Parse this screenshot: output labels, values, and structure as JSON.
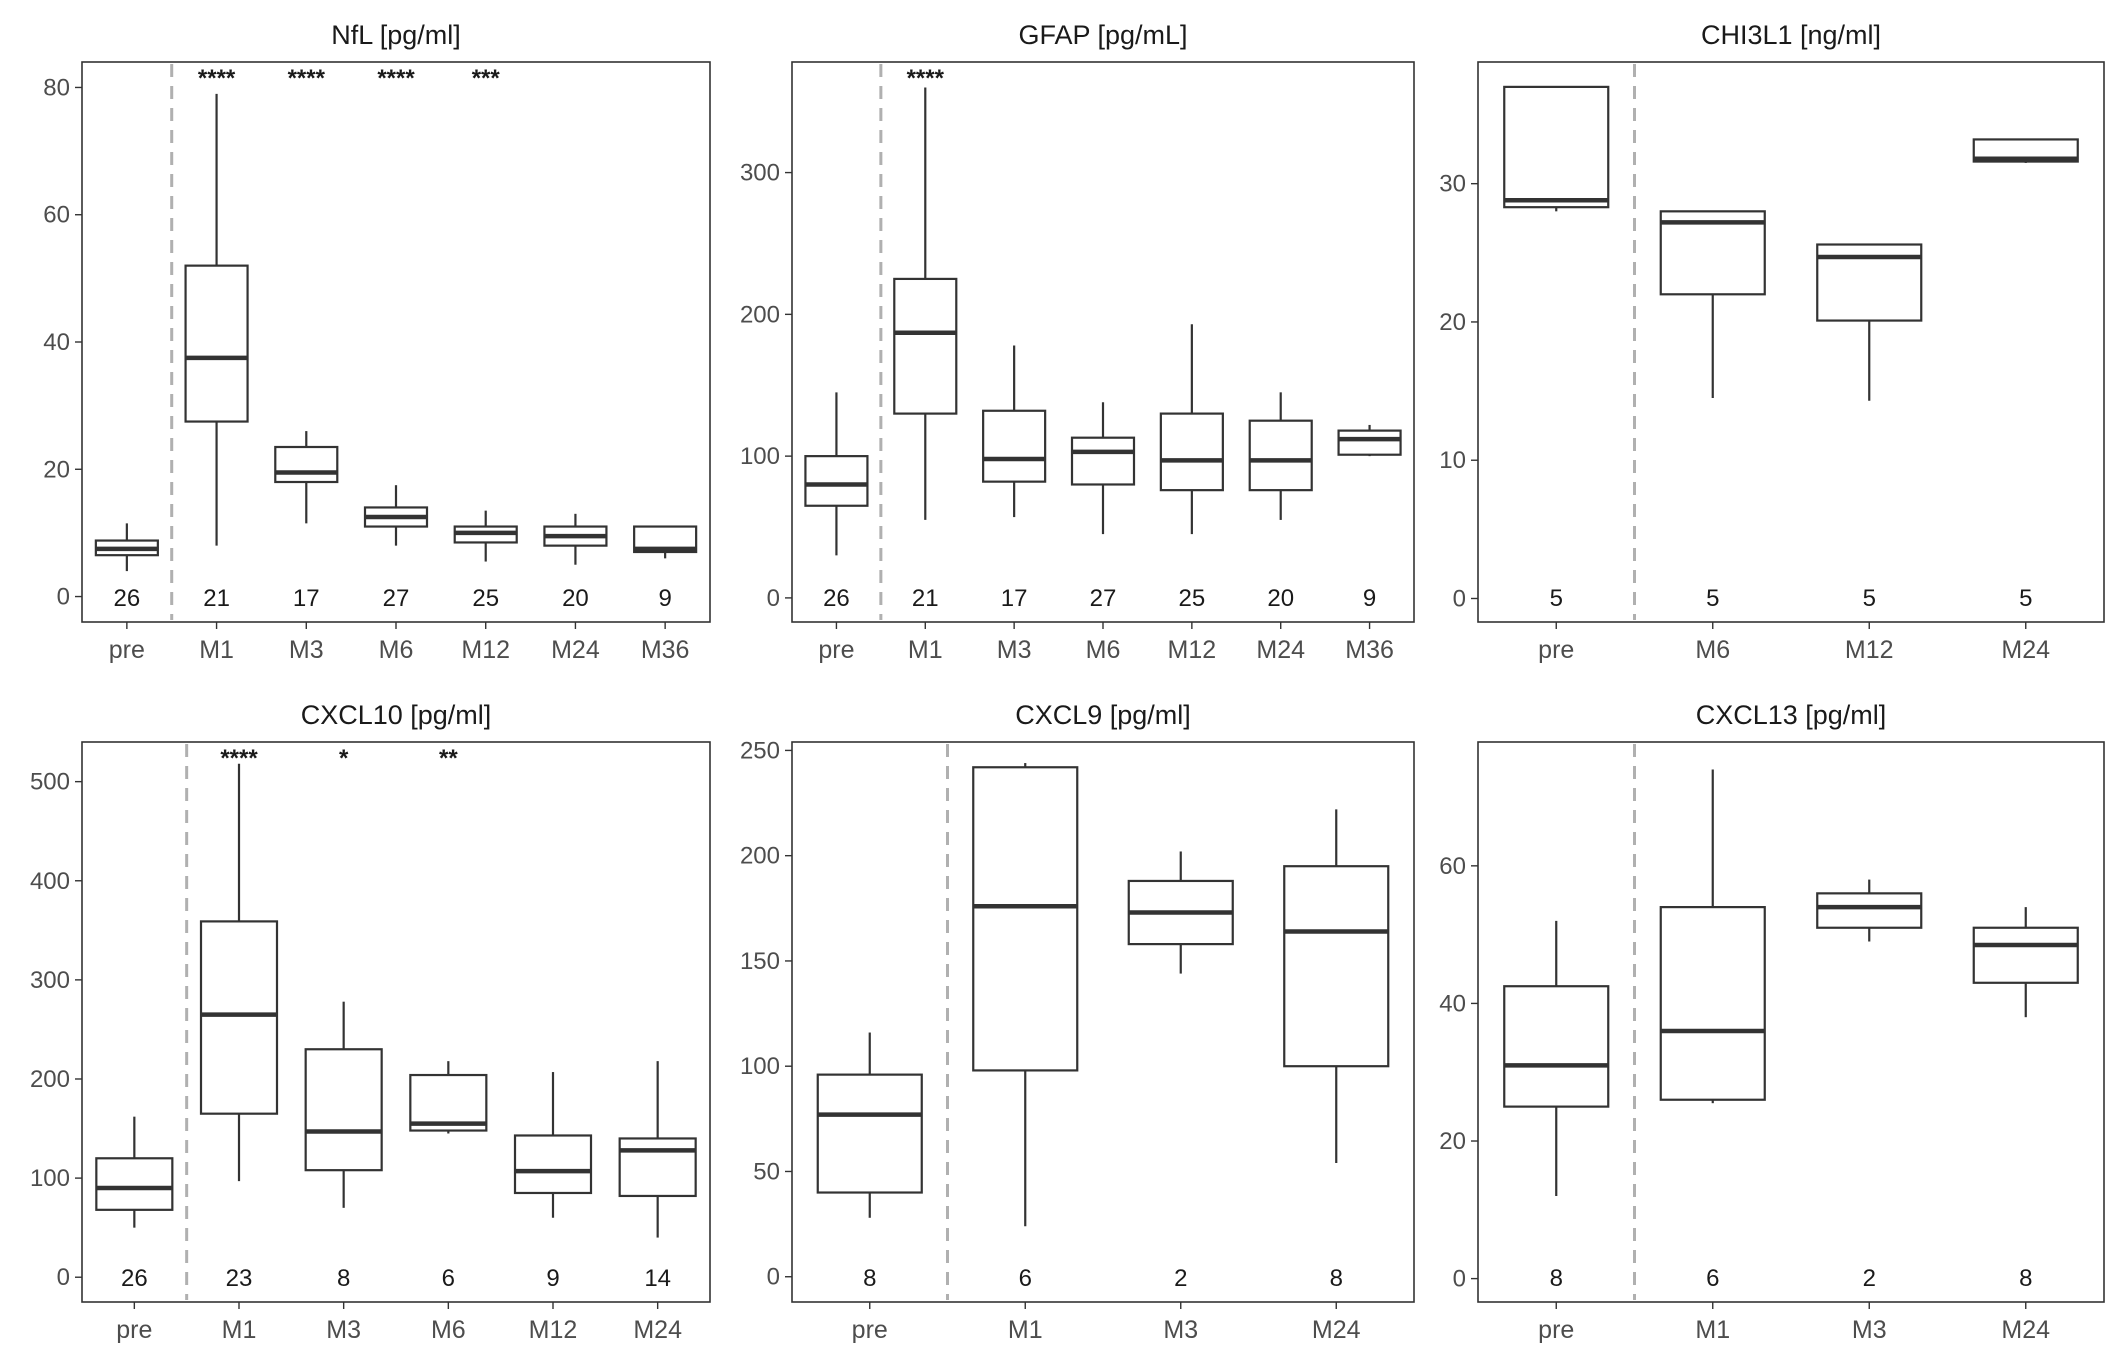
{
  "chart_data": [
    {
      "type": "box",
      "title": "NfL [pg/ml]",
      "categories": [
        "pre",
        "M1",
        "M3",
        "M6",
        "M12",
        "M24",
        "M36"
      ],
      "ylim": [
        -4,
        84
      ],
      "yticks": [
        0,
        20,
        40,
        60,
        80
      ],
      "divider_after_index": 0,
      "boxes": [
        {
          "min": 4,
          "q1": 6.5,
          "median": 7.5,
          "q3": 8.8,
          "max": 11.5
        },
        {
          "min": 8,
          "q1": 27.5,
          "median": 37.5,
          "q3": 52,
          "max": 79
        },
        {
          "min": 11.5,
          "q1": 18,
          "median": 19.5,
          "q3": 23.5,
          "max": 26
        },
        {
          "min": 8,
          "q1": 11,
          "median": 12.5,
          "q3": 14,
          "max": 17.5
        },
        {
          "min": 5.5,
          "q1": 8.5,
          "median": 10,
          "q3": 11,
          "max": 13.5
        },
        {
          "min": 5,
          "q1": 8,
          "median": 9.5,
          "q3": 11,
          "max": 13
        },
        {
          "min": 6,
          "q1": 7,
          "median": 7.5,
          "q3": 11,
          "max": 11
        }
      ],
      "n": [
        "26",
        "21",
        "17",
        "27",
        "25",
        "20",
        "9"
      ],
      "significance": [
        "",
        "****",
        "****",
        "****",
        "***",
        "",
        ""
      ]
    },
    {
      "type": "box",
      "title": "GFAP [pg/mL]",
      "categories": [
        "pre",
        "M1",
        "M3",
        "M6",
        "M12",
        "M24",
        "M36"
      ],
      "ylim": [
        -17,
        378
      ],
      "yticks": [
        0,
        100,
        200,
        300
      ],
      "divider_after_index": 0,
      "boxes": [
        {
          "min": 30,
          "q1": 65,
          "median": 80,
          "q3": 100,
          "max": 145
        },
        {
          "min": 55,
          "q1": 130,
          "median": 187,
          "q3": 225,
          "max": 360
        },
        {
          "min": 57,
          "q1": 82,
          "median": 98,
          "q3": 132,
          "max": 178
        },
        {
          "min": 45,
          "q1": 80,
          "median": 103,
          "q3": 113,
          "max": 138
        },
        {
          "min": 45,
          "q1": 76,
          "median": 97,
          "q3": 130,
          "max": 193
        },
        {
          "min": 55,
          "q1": 76,
          "median": 97,
          "q3": 125,
          "max": 145
        },
        {
          "min": 100,
          "q1": 101,
          "median": 112,
          "q3": 118,
          "max": 122
        }
      ],
      "n": [
        "26",
        "21",
        "17",
        "27",
        "25",
        "20",
        "9"
      ],
      "significance": [
        "",
        "****",
        "",
        "",
        "",
        "",
        ""
      ]
    },
    {
      "type": "box",
      "title": "CHI3L1 [ng/ml]",
      "categories": [
        "pre",
        "M6",
        "M12",
        "M24"
      ],
      "ylim": [
        -1.7,
        38.8
      ],
      "yticks": [
        0,
        10,
        20,
        30
      ],
      "divider_after_index": 0,
      "boxes": [
        {
          "min": 28,
          "q1": 28.3,
          "median": 28.8,
          "q3": 37,
          "max": 37
        },
        {
          "min": 14.5,
          "q1": 22,
          "median": 27.2,
          "q3": 28,
          "max": 28
        },
        {
          "min": 14.3,
          "q1": 20.1,
          "median": 24.7,
          "q3": 25.6,
          "max": 25.6
        },
        {
          "min": 31.5,
          "q1": 31.6,
          "median": 31.8,
          "q3": 33.2,
          "max": 33.2
        }
      ],
      "n": [
        "5",
        "5",
        "5",
        "5"
      ],
      "significance": [
        "",
        "",
        "",
        ""
      ]
    },
    {
      "type": "box",
      "title": "CXCL10 [pg/ml]",
      "categories": [
        "pre",
        "M1",
        "M3",
        "M6",
        "M12",
        "M24"
      ],
      "ylim": [
        -25,
        540
      ],
      "yticks": [
        0,
        100,
        200,
        300,
        400,
        500
      ],
      "divider_after_index": 0,
      "boxes": [
        {
          "min": 50,
          "q1": 68,
          "median": 90,
          "q3": 120,
          "max": 162
        },
        {
          "min": 97,
          "q1": 165,
          "median": 265,
          "q3": 359,
          "max": 518
        },
        {
          "min": 70,
          "q1": 108,
          "median": 147,
          "q3": 230,
          "max": 278
        },
        {
          "min": 145,
          "q1": 148,
          "median": 155,
          "q3": 204,
          "max": 218
        },
        {
          "min": 60,
          "q1": 85,
          "median": 107,
          "q3": 143,
          "max": 207
        },
        {
          "min": 40,
          "q1": 82,
          "median": 128,
          "q3": 140,
          "max": 218
        }
      ],
      "n": [
        "26",
        "23",
        "8",
        "6",
        "9",
        "14"
      ],
      "significance": [
        "",
        "****",
        "*",
        "**",
        "",
        ""
      ]
    },
    {
      "type": "box",
      "title": "CXCL9 [pg/ml]",
      "categories": [
        "pre",
        "M1",
        "M3",
        "M24"
      ],
      "ylim": [
        -12,
        254
      ],
      "yticks": [
        0,
        50,
        100,
        150,
        200,
        250
      ],
      "divider_after_index": 0,
      "boxes": [
        {
          "min": 28,
          "q1": 40,
          "median": 77,
          "q3": 96,
          "max": 116
        },
        {
          "min": 24,
          "q1": 98,
          "median": 176,
          "q3": 242,
          "max": 244
        },
        {
          "min": 144,
          "q1": 158,
          "median": 173,
          "q3": 188,
          "max": 202
        },
        {
          "min": 54,
          "q1": 100,
          "median": 164,
          "q3": 195,
          "max": 222
        }
      ],
      "n": [
        "8",
        "6",
        "2",
        "8"
      ],
      "significance": [
        "",
        "",
        "",
        ""
      ]
    },
    {
      "type": "box",
      "title": "CXCL13 [pg/ml]",
      "categories": [
        "pre",
        "M1",
        "M3",
        "M24"
      ],
      "ylim": [
        -3.4,
        78
      ],
      "yticks": [
        0,
        20,
        40,
        60
      ],
      "divider_after_index": 0,
      "boxes": [
        {
          "min": 12,
          "q1": 25,
          "median": 31,
          "q3": 42.5,
          "max": 52
        },
        {
          "min": 25.5,
          "q1": 26,
          "median": 36,
          "q3": 54,
          "max": 74
        },
        {
          "min": 49,
          "q1": 51,
          "median": 54,
          "q3": 56,
          "max": 58
        },
        {
          "min": 38,
          "q1": 43,
          "median": 48.5,
          "q3": 51,
          "max": 54
        }
      ],
      "n": [
        "8",
        "6",
        "2",
        "8"
      ],
      "significance": [
        "",
        "",
        "",
        ""
      ]
    }
  ],
  "style": {
    "box_color": "#333333",
    "panel_border": "#333333",
    "divider_color": "#b0b0b0",
    "tick_text": "#4d4d4d"
  }
}
